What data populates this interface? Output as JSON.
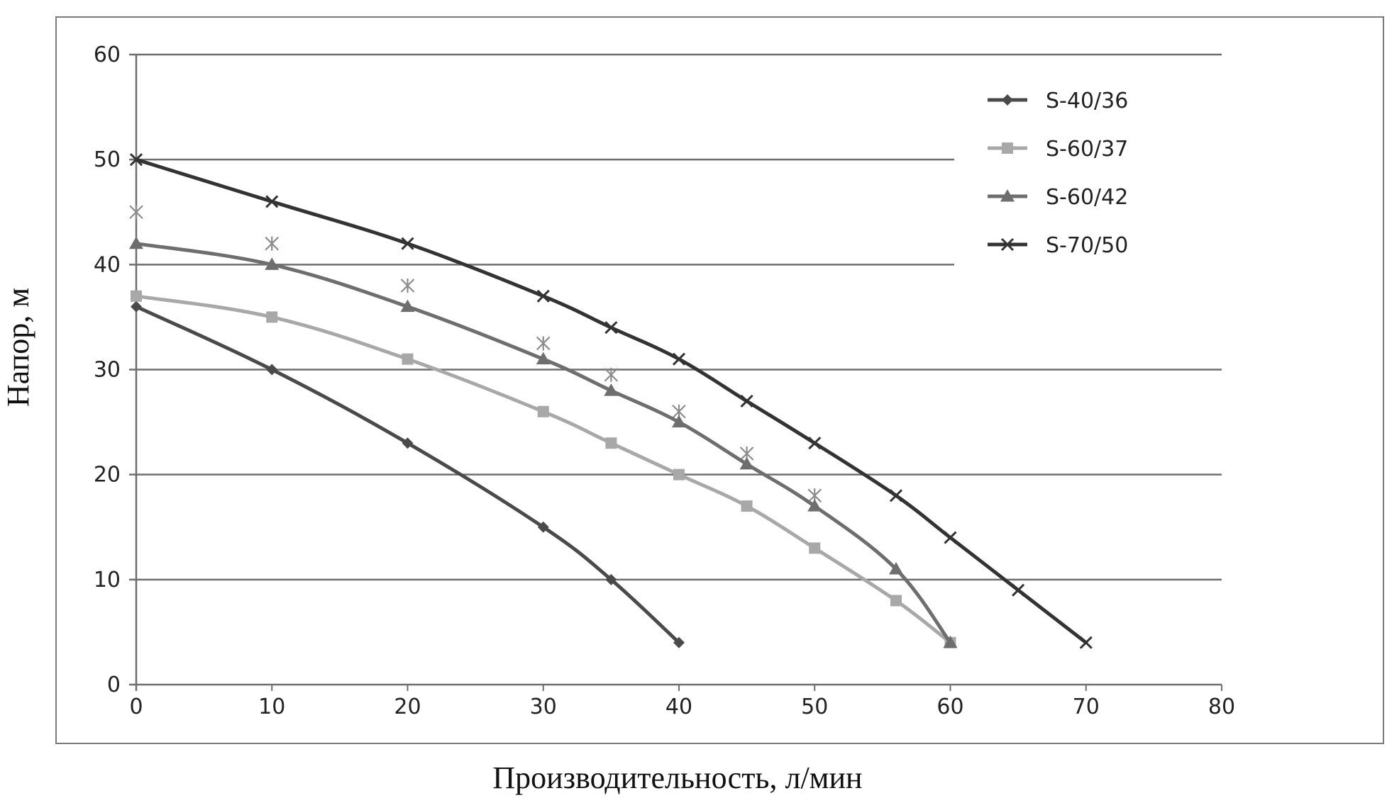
{
  "chart_data": {
    "type": "line",
    "xlabel": "Производительность, л/мин",
    "ylabel": "Напор, м",
    "xlim": [
      0,
      80
    ],
    "ylim": [
      0,
      60
    ],
    "x_ticks": [
      "0",
      "10",
      "20",
      "30",
      "40",
      "50",
      "60",
      "70",
      "80"
    ],
    "y_ticks": [
      "0",
      "10",
      "20",
      "30",
      "40",
      "50",
      "60"
    ],
    "grid": "horizontal",
    "legend_position": "top-right",
    "series": [
      {
        "name": "S-40/36",
        "marker": "diamond",
        "color": "#4a4a4a",
        "points": [
          [
            0,
            36
          ],
          [
            10,
            30
          ],
          [
            20,
            23
          ],
          [
            30,
            15
          ],
          [
            35,
            10
          ],
          [
            40,
            4
          ]
        ]
      },
      {
        "name": "S-60/37",
        "marker": "square",
        "color": "#a8a8a8",
        "points": [
          [
            0,
            37
          ],
          [
            10,
            35
          ],
          [
            20,
            31
          ],
          [
            30,
            26
          ],
          [
            35,
            23
          ],
          [
            40,
            20
          ],
          [
            45,
            17
          ],
          [
            50,
            13
          ],
          [
            56,
            8
          ],
          [
            60,
            4
          ]
        ]
      },
      {
        "name": "S-60/42",
        "marker": "triangle",
        "color": "#6e6e6e",
        "points": [
          [
            0,
            42
          ],
          [
            10,
            40
          ],
          [
            20,
            36
          ],
          [
            30,
            31
          ],
          [
            35,
            28
          ],
          [
            40,
            25
          ],
          [
            45,
            21
          ],
          [
            50,
            17
          ],
          [
            56,
            11
          ],
          [
            60,
            4
          ]
        ]
      },
      {
        "name": "S-70/50",
        "marker": "x",
        "color": "#333333",
        "points": [
          [
            0,
            50
          ],
          [
            10,
            46
          ],
          [
            20,
            42
          ],
          [
            30,
            37
          ],
          [
            35,
            34
          ],
          [
            40,
            31
          ],
          [
            45,
            27
          ],
          [
            50,
            23
          ],
          [
            56,
            18
          ],
          [
            60,
            14
          ],
          [
            65,
            9
          ],
          [
            70,
            4
          ]
        ]
      }
    ],
    "extra_points": {
      "marker": "star",
      "color": "#8c8c8c",
      "points": [
        [
          0,
          45
        ],
        [
          10,
          42
        ],
        [
          20,
          38
        ],
        [
          30,
          32.5
        ],
        [
          35,
          29.5
        ],
        [
          40,
          26
        ],
        [
          45,
          22
        ],
        [
          50,
          18
        ]
      ]
    }
  }
}
